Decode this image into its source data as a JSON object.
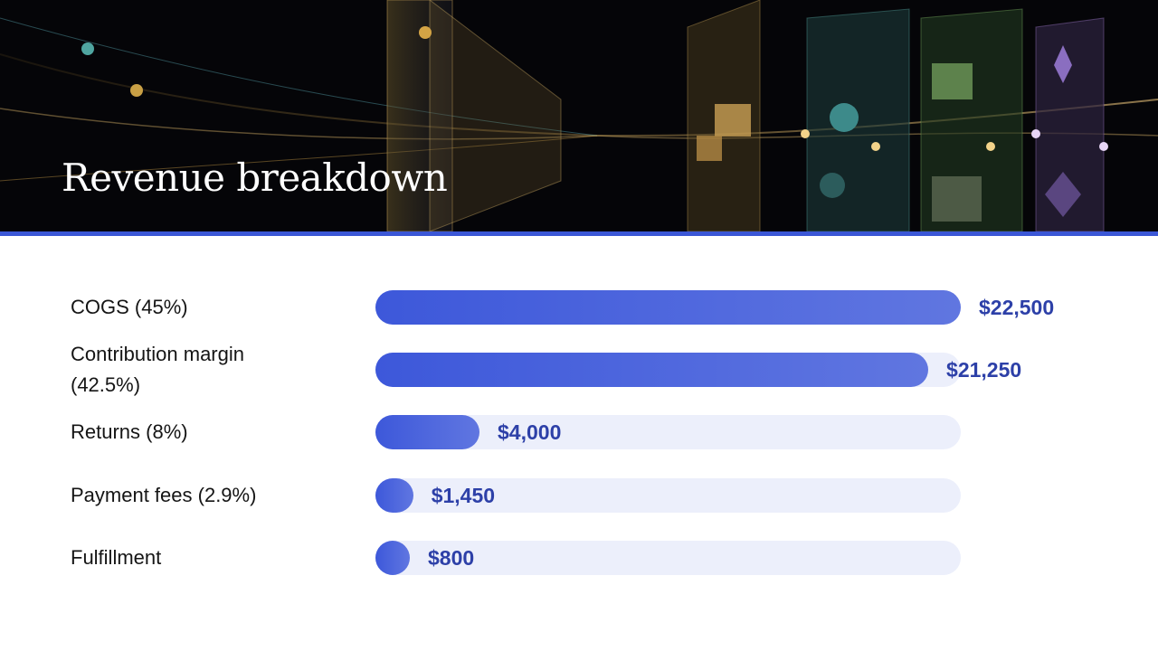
{
  "chart_data": {
    "type": "bar",
    "orientation": "horizontal",
    "title": "Revenue breakdown",
    "categories": [
      "COGS (45%)",
      "Contribution margin (42.5%)",
      "Returns (8%)",
      "Payment fees (2.9%)",
      "Fulfillment"
    ],
    "values": [
      22500,
      21250,
      4000,
      1450,
      800
    ],
    "value_labels": [
      "$22,500",
      "$21,250",
      "$4,000",
      "$1,450",
      "$800"
    ],
    "xlim": [
      0,
      22500
    ],
    "color": "#3d58da",
    "track_color": "#eceffb",
    "label_color": "#2d40a8"
  }
}
